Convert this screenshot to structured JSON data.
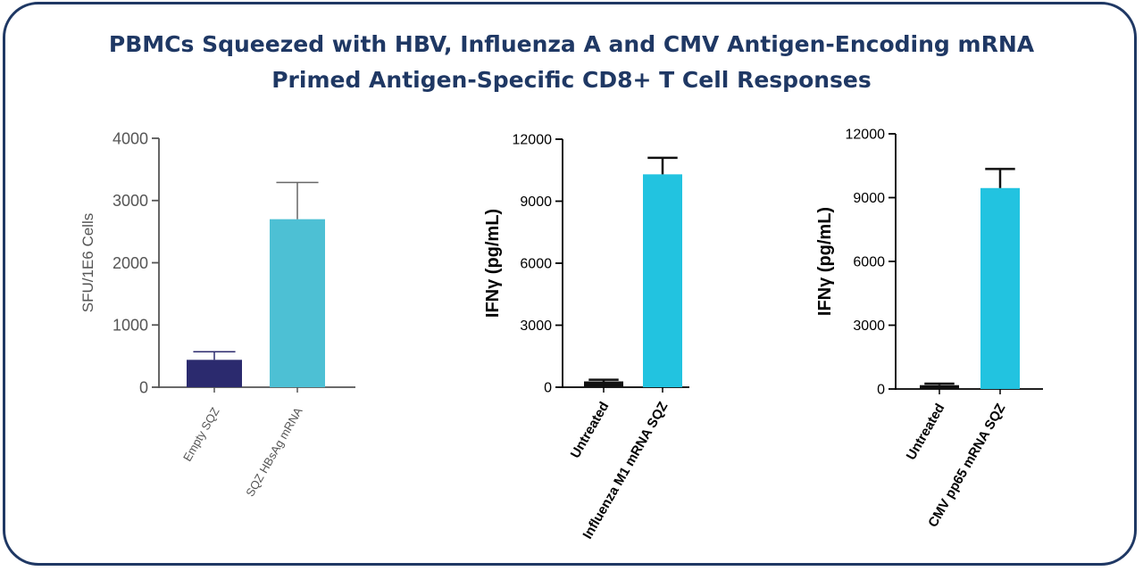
{
  "title": {
    "line1": "PBMCs Squeezed with HBV, Influenza A and CMV Antigen-Encoding mRNA",
    "line2": "Primed Antigen-Specific CD8+ T Cell Responses"
  },
  "colors": {
    "frame": "#1f3864",
    "title": "#1f3864",
    "hbv_empty": "#2b2a6e",
    "hbv_sqz": "#4dc0d4",
    "untreated": "#111111",
    "ifng_sqz": "#22c3e0",
    "axis_gray": "#555555",
    "axis_black": "#000000"
  },
  "chart_data": [
    {
      "type": "bar",
      "ylabel": "SFU/1E6 Cells",
      "categories": [
        "Empty SQZ",
        "SQZ HBsAg mRNA"
      ],
      "values": [
        440,
        2700
      ],
      "errors": [
        130,
        590
      ],
      "ylim": [
        0,
        4000
      ],
      "yticks": [
        "0",
        "1000",
        "2000",
        "3000",
        "4000"
      ],
      "series_colors": [
        "#2b2a6e",
        "#4dc0d4"
      ]
    },
    {
      "type": "bar",
      "ylabel": "IFNγ (pg/mL)",
      "categories": [
        "Untreated",
        "Influenza M1 mRNA SQZ"
      ],
      "values": [
        280,
        10300
      ],
      "errors": [
        80,
        800
      ],
      "ylim": [
        0,
        12000
      ],
      "yticks": [
        "0",
        "3000",
        "6000",
        "9000",
        "12000"
      ],
      "series_colors": [
        "#111111",
        "#22c3e0"
      ]
    },
    {
      "type": "bar",
      "ylabel": "IFNγ (pg/mL)",
      "categories": [
        "Untreated",
        "CMV pp65 mRNA SQZ"
      ],
      "values": [
        180,
        9450
      ],
      "errors": [
        70,
        900
      ],
      "ylim": [
        0,
        12000
      ],
      "yticks": [
        "0",
        "3000",
        "6000",
        "9000",
        "12000"
      ],
      "series_colors": [
        "#111111",
        "#22c3e0"
      ]
    }
  ]
}
